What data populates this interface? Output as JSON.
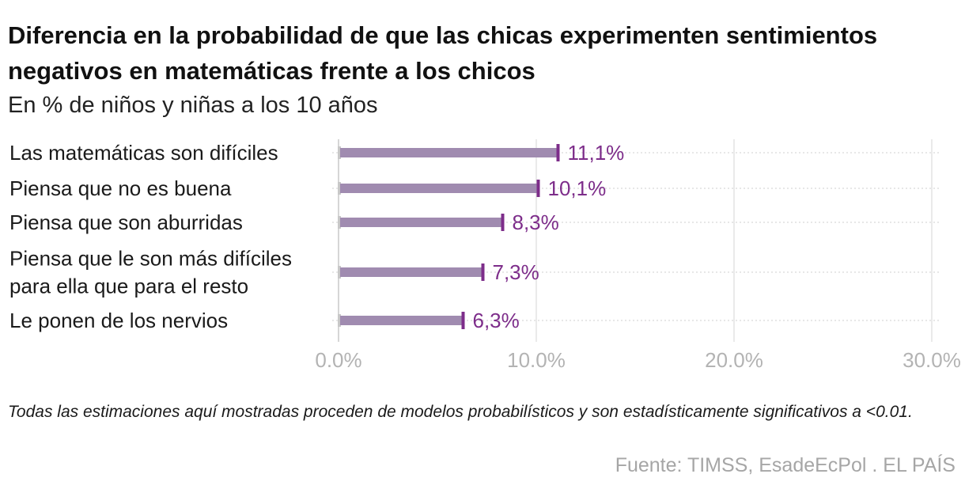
{
  "header": {
    "title": "Diferencia en la probabilidad de que las chicas experimenten sentimientos negativos en matemáticas frente a los chicos",
    "subtitle": "En % de niños y niñas a los 10 años"
  },
  "footer": {
    "note": "Todas las estimaciones aquí mostradas proceden de modelos probabilísticos y son estadísticamente significativos a <0.01.",
    "source": "Fuente: TIMSS, EsadeEcPol . EL PAÍS"
  },
  "colors": {
    "bar": "#a08bb0",
    "marker": "#7d2d8a",
    "value_text": "#7d2d8a",
    "grid": "#dddddd",
    "axis_zero": "#bbbbbb"
  },
  "chart_data": {
    "type": "bar",
    "orientation": "horizontal",
    "title": "Diferencia en la probabilidad de que las chicas experimenten sentimientos negativos en matemáticas frente a los chicos",
    "subtitle": "En % de niños y niñas a los 10 años",
    "categories": [
      [
        "Las matemáticas son difíciles"
      ],
      [
        "Piensa que no es buena"
      ],
      [
        "Piensa que son aburridas"
      ],
      [
        "Piensa que le son más difíciles",
        "para ella que para el resto"
      ],
      [
        "Le ponen de los nervios"
      ]
    ],
    "values": [
      11.1,
      10.1,
      8.3,
      7.3,
      6.3
    ],
    "value_labels": [
      "11,1%",
      "10,1%",
      "8,3%",
      "7,3%",
      "6,3%"
    ],
    "xlim": [
      0,
      30
    ],
    "x_ticks": [
      0,
      10,
      20,
      30
    ],
    "x_tick_labels": [
      "0.0%",
      "10.0%",
      "20.0%",
      "30.0%"
    ],
    "xlabel": "",
    "ylabel": "",
    "grid": true
  }
}
